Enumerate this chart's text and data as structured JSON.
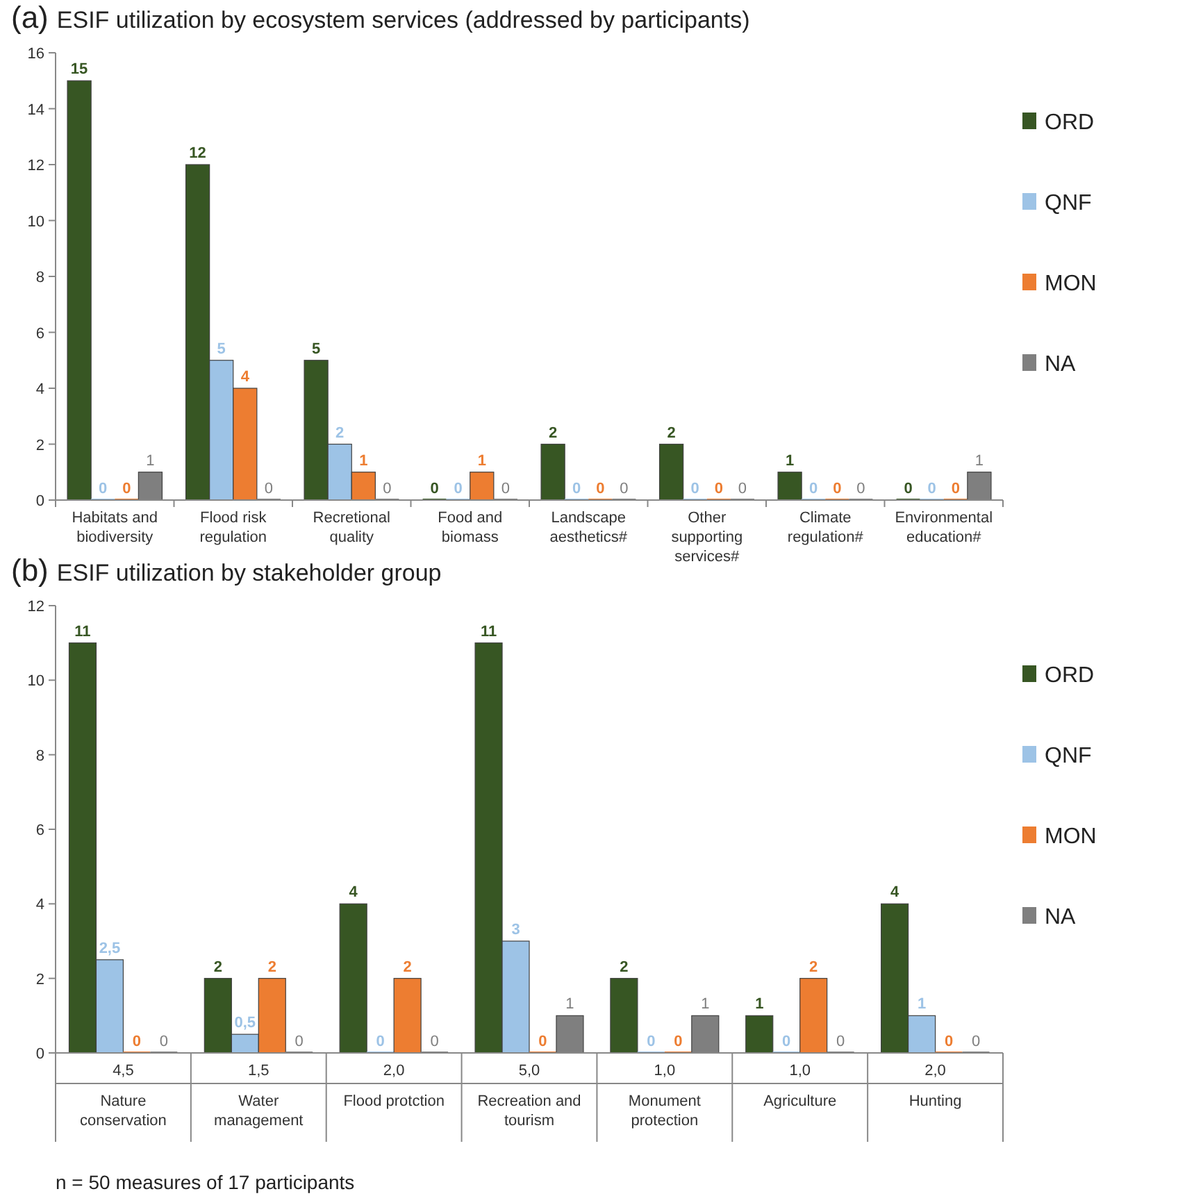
{
  "chart_data": [
    {
      "type": "bar",
      "title": "(a) ESIF utilization by ecosystem services (addressed by participants)",
      "categories": [
        "Habitats and biodiversity",
        "Flood risk regulation",
        "Recretional quality",
        "Food and biomass",
        "Landscape aesthetics#",
        "Other supporting services#",
        "Climate regulation#",
        "Environmental education#"
      ],
      "series": [
        {
          "name": "ORD",
          "color": "#375623",
          "values": [
            15,
            12,
            5,
            0,
            2,
            2,
            1,
            0
          ]
        },
        {
          "name": "QNF",
          "color": "#9dc3e6",
          "values": [
            0,
            5,
            2,
            0,
            0,
            0,
            0,
            0
          ]
        },
        {
          "name": "MON",
          "color": "#ed7d31",
          "values": [
            0,
            4,
            1,
            1,
            0,
            0,
            0,
            0
          ]
        },
        {
          "name": "NA",
          "color": "#7f7f7f",
          "values": [
            1,
            0,
            0,
            0,
            0,
            0,
            0,
            1
          ]
        }
      ],
      "ylim": [
        0,
        16
      ],
      "yticks": [
        0,
        2,
        4,
        6,
        8,
        10,
        12,
        14,
        16
      ],
      "grid": false,
      "legend": "right",
      "data_labels": true
    },
    {
      "type": "bar",
      "title": "(b) ESIF utilization by stakeholder group",
      "categories": [
        "Nature conservation",
        "Water management",
        "Flood protction",
        "Recreation and tourism",
        "Monument protection",
        "Agriculture",
        "Hunting"
      ],
      "series": [
        {
          "name": "ORD",
          "color": "#375623",
          "values": [
            11,
            2,
            4,
            11,
            2,
            1,
            4
          ],
          "value_labels": [
            "11",
            "2",
            "4",
            "11",
            "2",
            "1",
            "4"
          ]
        },
        {
          "name": "QNF",
          "color": "#9dc3e6",
          "values": [
            2.5,
            0.5,
            0,
            3,
            0,
            0,
            1
          ],
          "value_labels": [
            "2,5",
            "0,5",
            "0",
            "3",
            "0",
            "0",
            "1"
          ]
        },
        {
          "name": "MON",
          "color": "#ed7d31",
          "values": [
            0,
            2,
            2,
            0,
            0,
            2,
            0
          ],
          "value_labels": [
            "0",
            "2",
            "2",
            "0",
            "0",
            "2",
            "0"
          ]
        },
        {
          "name": "NA",
          "color": "#7f7f7f",
          "values": [
            0,
            0,
            0,
            1,
            1,
            0,
            0
          ],
          "value_labels": [
            "0",
            "0",
            "0",
            "1",
            "1",
            "0",
            "0"
          ]
        }
      ],
      "ylim": [
        0,
        12
      ],
      "yticks": [
        0,
        2,
        4,
        6,
        8,
        10,
        12
      ],
      "grid": false,
      "legend": "right",
      "annotations": [
        "4,5",
        "1,5",
        "2,0",
        "5,0",
        "1,0",
        "1,0",
        "2,0",
        "n = 50 measures of 17 participants"
      ]
    }
  ]
}
